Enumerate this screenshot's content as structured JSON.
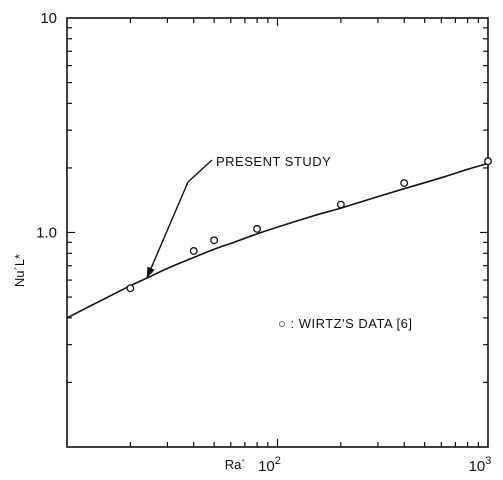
{
  "chart_data": {
    "type": "line",
    "xscale": "log",
    "yscale": "log",
    "xlim": [
      10,
      1000
    ],
    "ylim": [
      0.1,
      10
    ],
    "xlabel": "Ra´",
    "ylabel": "Nu´L*",
    "x_tick_labels": [
      {
        "value": 100,
        "base": "10",
        "exp": "2"
      },
      {
        "value": 1000,
        "base": "10",
        "exp": "3"
      }
    ],
    "y_tick_labels": [
      {
        "value": 1,
        "label": "1.0"
      },
      {
        "value": 10,
        "label": "10"
      }
    ],
    "series": [
      {
        "name": "PRESENT STUDY",
        "kind": "curve",
        "x": [
          10,
          15,
          20,
          25,
          30,
          40,
          50,
          60,
          80,
          100,
          150,
          200,
          300,
          400,
          600,
          800,
          1000
        ],
        "y": [
          0.4,
          0.49,
          0.565,
          0.625,
          0.68,
          0.765,
          0.835,
          0.89,
          0.985,
          1.06,
          1.2,
          1.3,
          1.47,
          1.6,
          1.8,
          1.97,
          2.1
        ]
      },
      {
        "name": "WIRTZ'S DATA [6]",
        "kind": "points",
        "x": [
          20,
          40,
          50,
          80,
          200,
          400,
          1000
        ],
        "y": [
          0.55,
          0.82,
          0.92,
          1.04,
          1.35,
          1.7,
          2.15
        ]
      }
    ],
    "annotations": [
      {
        "text": "PRESENT STUDY",
        "arrow_to": {
          "x": 25,
          "y": 0.625
        }
      },
      {
        "text": "○ : WIRTZ'S DATA [6]"
      }
    ],
    "grid": false,
    "legend": "inside-right"
  }
}
